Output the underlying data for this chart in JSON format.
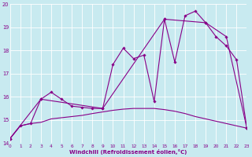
{
  "xlabel": "Windchill (Refroidissement éolien,°C)",
  "xlim": [
    0,
    23
  ],
  "ylim": [
    14,
    20
  ],
  "yticks": [
    14,
    15,
    16,
    17,
    18,
    19,
    20
  ],
  "xticks": [
    0,
    1,
    2,
    3,
    4,
    5,
    6,
    7,
    8,
    9,
    10,
    11,
    12,
    13,
    14,
    15,
    16,
    17,
    18,
    19,
    20,
    21,
    22,
    23
  ],
  "bg_color": "#c8eaf0",
  "grid_color": "#a0ccd8",
  "line_color": "#880088",
  "series1_x": [
    0,
    1,
    2,
    3,
    4,
    5,
    6,
    7,
    8,
    9,
    10,
    11,
    12,
    13,
    14,
    15,
    16,
    17,
    18,
    19,
    20,
    21,
    22,
    23
  ],
  "series1_y": [
    14.2,
    14.75,
    14.85,
    14.9,
    15.05,
    15.1,
    15.15,
    15.2,
    15.28,
    15.35,
    15.42,
    15.47,
    15.5,
    15.5,
    15.5,
    15.45,
    15.38,
    15.28,
    15.15,
    15.05,
    14.95,
    14.85,
    14.75,
    14.65
  ],
  "series2_x": [
    0,
    1,
    2,
    3,
    4,
    5,
    6,
    7,
    8,
    9,
    10,
    11,
    12,
    13,
    14,
    15,
    16,
    17,
    18,
    19,
    20,
    21,
    22,
    23
  ],
  "series2_y": [
    14.2,
    14.75,
    14.85,
    15.9,
    16.2,
    15.9,
    15.6,
    15.55,
    15.5,
    15.5,
    17.4,
    18.1,
    17.65,
    17.8,
    15.8,
    19.35,
    17.5,
    19.5,
    19.7,
    19.2,
    18.6,
    18.2,
    17.6,
    14.65
  ],
  "series3_x": [
    0,
    3,
    9,
    15,
    19,
    21,
    23
  ],
  "series3_y": [
    14.2,
    15.9,
    15.5,
    19.35,
    19.2,
    18.6,
    14.65
  ]
}
